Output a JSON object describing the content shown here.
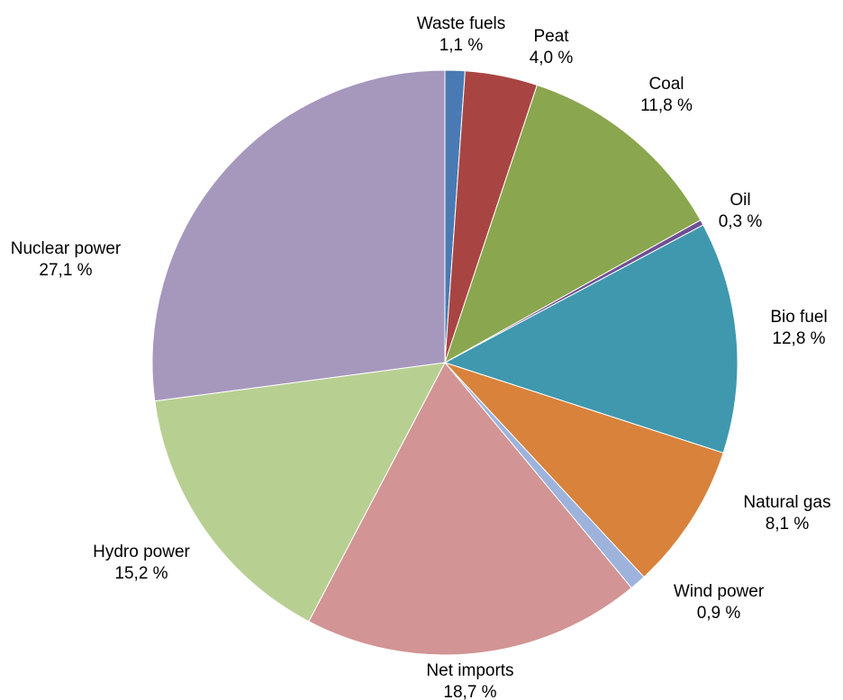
{
  "chart_data": {
    "type": "pie",
    "title": "",
    "start_angle_deg": 0,
    "direction": "clockwise",
    "slices": [
      {
        "name": "Waste fuels",
        "value": 1.1,
        "label_name": "Waste fuels",
        "label_value": "1,1 %",
        "color": "#4a7ab3"
      },
      {
        "name": "Peat",
        "value": 4.0,
        "label_name": "Peat",
        "label_value": "4,0 %",
        "color": "#a84543"
      },
      {
        "name": "Coal",
        "value": 11.8,
        "label_name": "Coal",
        "label_value": "11,8 %",
        "color": "#8aa64e"
      },
      {
        "name": "Oil",
        "value": 0.3,
        "label_name": "Oil",
        "label_value": "0,3 %",
        "color": "#6f4f93"
      },
      {
        "name": "Bio fuel",
        "value": 12.8,
        "label_name": "Bio fuel",
        "label_value": "12,8 %",
        "color": "#3f98ae"
      },
      {
        "name": "Natural gas",
        "value": 8.1,
        "label_name": "Natural gas",
        "label_value": "8,1 %",
        "color": "#d8823b"
      },
      {
        "name": "Wind power",
        "value": 0.9,
        "label_name": "Wind power",
        "label_value": "0,9 %",
        "color": "#9db3dc"
      },
      {
        "name": "Net imports",
        "value": 18.7,
        "label_name": "Net imports",
        "label_value": "18,7 %",
        "color": "#d29494"
      },
      {
        "name": "Hydro power",
        "value": 15.2,
        "label_name": "Hydro power",
        "label_value": "15,2 %",
        "color": "#b8cf92"
      },
      {
        "name": "Nuclear power",
        "value": 27.1,
        "label_name": "Nuclear power",
        "label_value": "27,1 %",
        "color": "#a697bc"
      }
    ]
  }
}
